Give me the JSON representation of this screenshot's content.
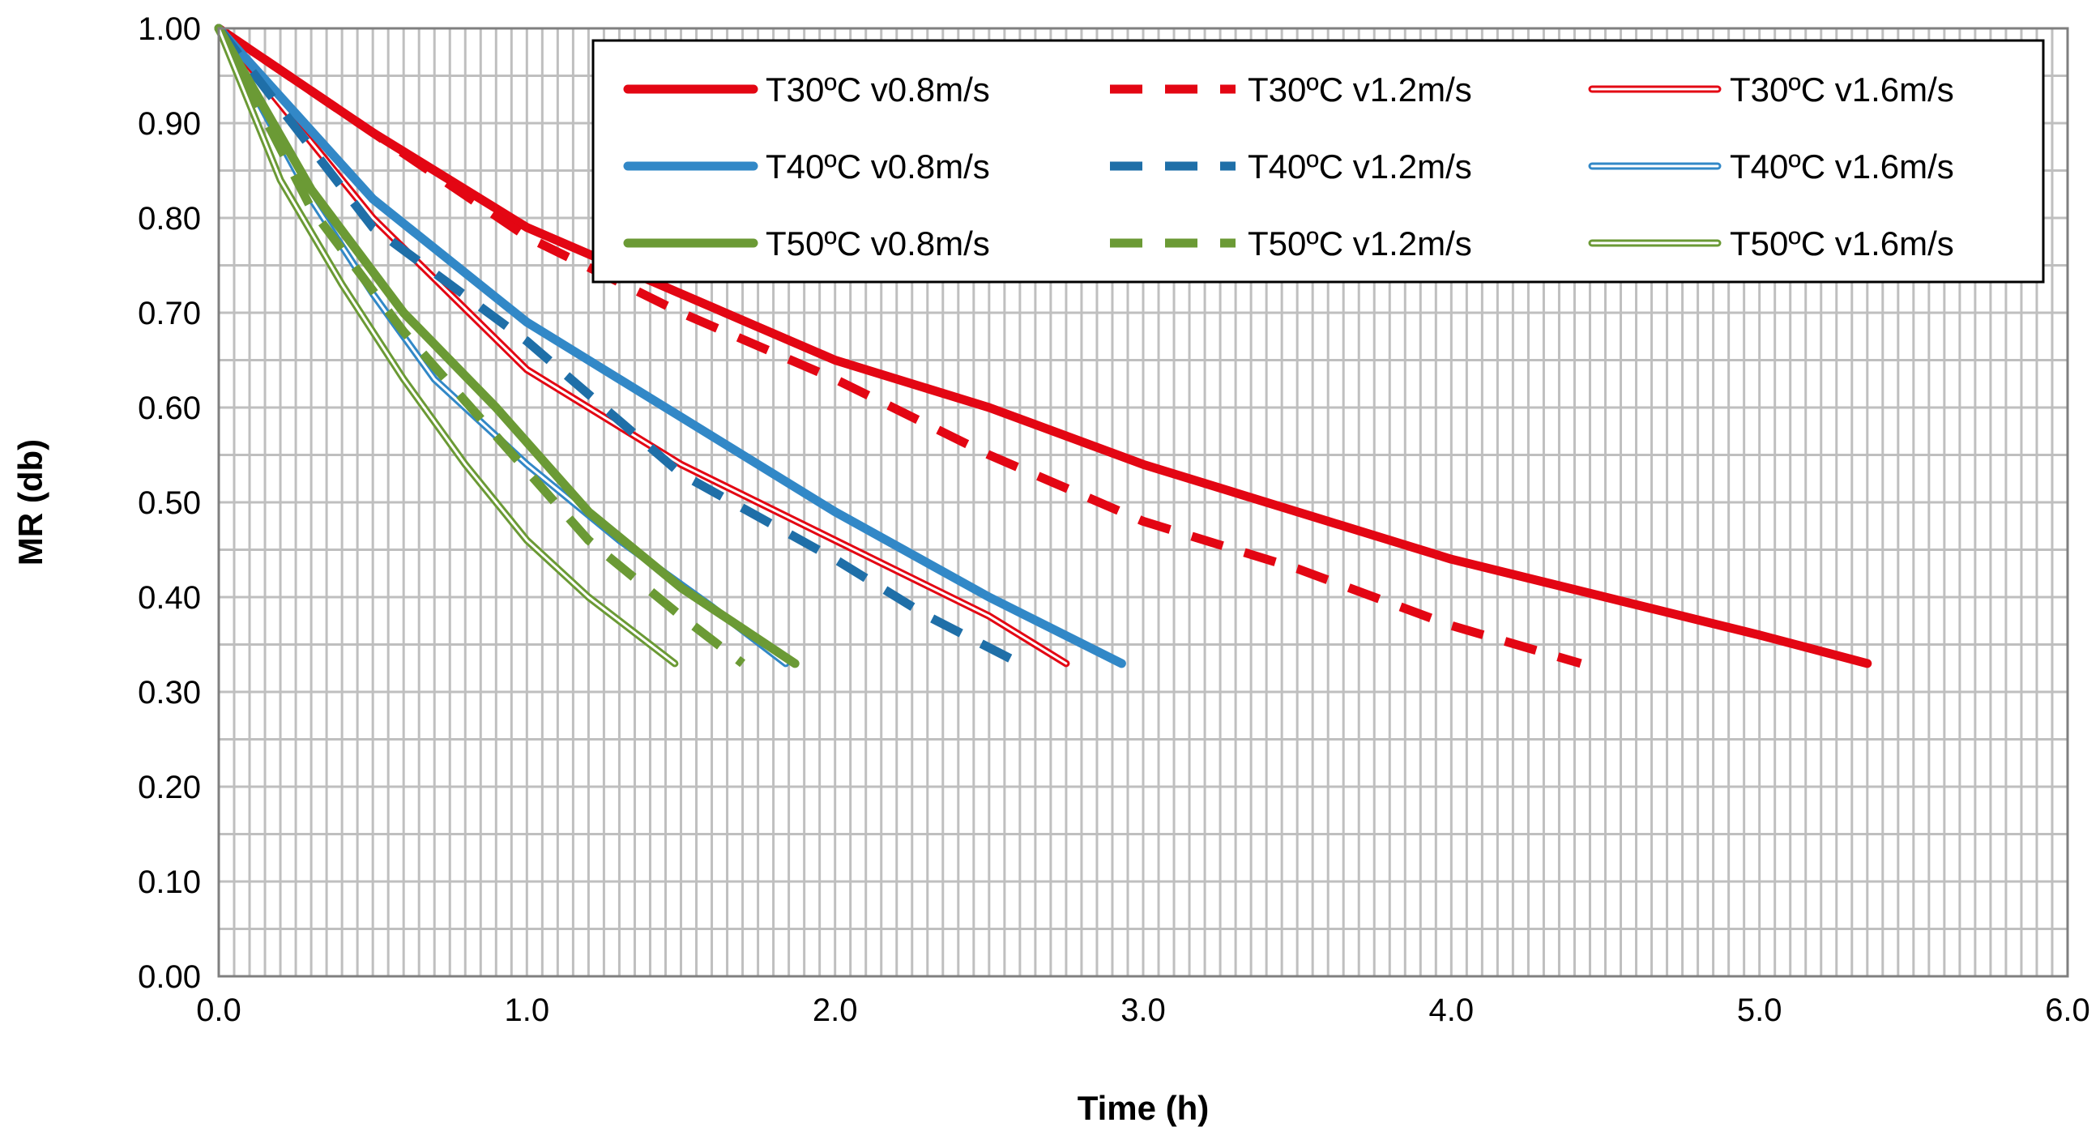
{
  "chart_data": {
    "type": "line",
    "title": "",
    "xlabel": "Time (h)",
    "ylabel": "MR (db)",
    "xlim": [
      0,
      6
    ],
    "ylim": [
      0,
      1
    ],
    "x_ticks": [
      "0.0",
      "1.0",
      "2.0",
      "3.0",
      "4.0",
      "5.0",
      "6.0"
    ],
    "y_ticks": [
      "0.00",
      "0.10",
      "0.20",
      "0.30",
      "0.40",
      "0.50",
      "0.60",
      "0.70",
      "0.80",
      "0.90",
      "1.00"
    ],
    "grid": true,
    "legend_position": "top-right",
    "series": [
      {
        "name": "T30ºC v0.8m/s",
        "color": "#e30613",
        "style": "solid",
        "x": [
          0,
          0.5,
          1.0,
          1.5,
          2.0,
          2.5,
          3.0,
          3.5,
          4.0,
          4.5,
          5.0,
          5.35
        ],
        "y": [
          1.0,
          0.89,
          0.79,
          0.72,
          0.65,
          0.6,
          0.54,
          0.49,
          0.44,
          0.4,
          0.36,
          0.33
        ]
      },
      {
        "name": "T30ºC v1.2m/s",
        "color": "#e30613",
        "style": "dash",
        "x": [
          0,
          0.5,
          1.0,
          1.5,
          2.0,
          2.5,
          3.0,
          3.5,
          4.0,
          4.42
        ],
        "y": [
          1.0,
          0.89,
          0.78,
          0.7,
          0.63,
          0.55,
          0.48,
          0.43,
          0.37,
          0.33
        ]
      },
      {
        "name": "T30ºC v1.6m/s",
        "color": "#e30613",
        "style": "double",
        "x": [
          0,
          0.5,
          1.0,
          1.5,
          2.0,
          2.5,
          2.75
        ],
        "y": [
          1.0,
          0.8,
          0.64,
          0.54,
          0.46,
          0.38,
          0.33
        ]
      },
      {
        "name": "T40ºC v0.8m/s",
        "color": "#3288c7",
        "style": "solid",
        "x": [
          0,
          0.5,
          1.0,
          1.5,
          2.0,
          2.5,
          2.93
        ],
        "y": [
          1.0,
          0.82,
          0.69,
          0.59,
          0.49,
          0.4,
          0.33
        ]
      },
      {
        "name": "T40ºC v1.2m/s",
        "color": "#1f6fa8",
        "style": "dash",
        "x": [
          0,
          0.5,
          1.0,
          1.5,
          2.0,
          2.3,
          2.6
        ],
        "y": [
          1.0,
          0.79,
          0.67,
          0.53,
          0.44,
          0.38,
          0.33
        ]
      },
      {
        "name": "T40ºC v1.6m/s",
        "color": "#3288c7",
        "style": "double",
        "x": [
          0,
          0.3,
          0.5,
          0.7,
          1.0,
          1.3,
          1.6,
          1.84
        ],
        "y": [
          1.0,
          0.82,
          0.72,
          0.63,
          0.54,
          0.46,
          0.39,
          0.33
        ]
      },
      {
        "name": "T50ºC v0.8m/s",
        "color": "#6b9a35",
        "style": "solid",
        "x": [
          0,
          0.3,
          0.6,
          0.9,
          1.2,
          1.5,
          1.87
        ],
        "y": [
          1.0,
          0.83,
          0.7,
          0.6,
          0.49,
          0.41,
          0.33
        ]
      },
      {
        "name": "T50ºC v1.2m/s",
        "color": "#6b9a35",
        "style": "dash",
        "x": [
          0,
          0.3,
          0.6,
          0.9,
          1.2,
          1.5,
          1.7
        ],
        "y": [
          1.0,
          0.81,
          0.68,
          0.57,
          0.46,
          0.38,
          0.33
        ]
      },
      {
        "name": "T50ºC v1.6m/s",
        "color": "#6b9a35",
        "style": "double",
        "x": [
          0,
          0.2,
          0.4,
          0.6,
          0.8,
          1.0,
          1.2,
          1.48
        ],
        "y": [
          1.0,
          0.84,
          0.73,
          0.63,
          0.54,
          0.46,
          0.4,
          0.33
        ]
      }
    ]
  }
}
